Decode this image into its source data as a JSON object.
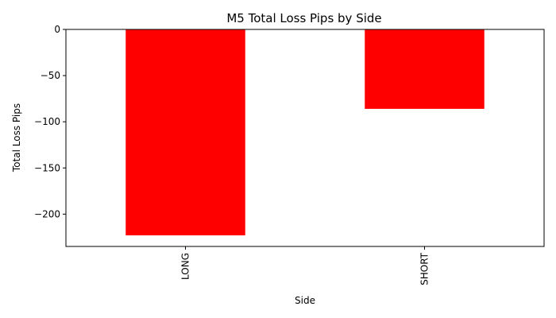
{
  "chart_data": {
    "type": "bar",
    "title": "M5 Total Loss Pips by Side",
    "xlabel": "Side",
    "ylabel": "Total Loss Pips",
    "categories": [
      "LONG",
      "SHORT"
    ],
    "values": [
      -223,
      -86
    ],
    "ylim": [
      -235,
      0
    ],
    "yticks": [
      0,
      -50,
      -100,
      -150,
      -200
    ],
    "ytick_labels": [
      "0",
      "−50",
      "−100",
      "−150",
      "−200"
    ],
    "bar_color": "#ff0000",
    "grid": false,
    "legend": false
  }
}
